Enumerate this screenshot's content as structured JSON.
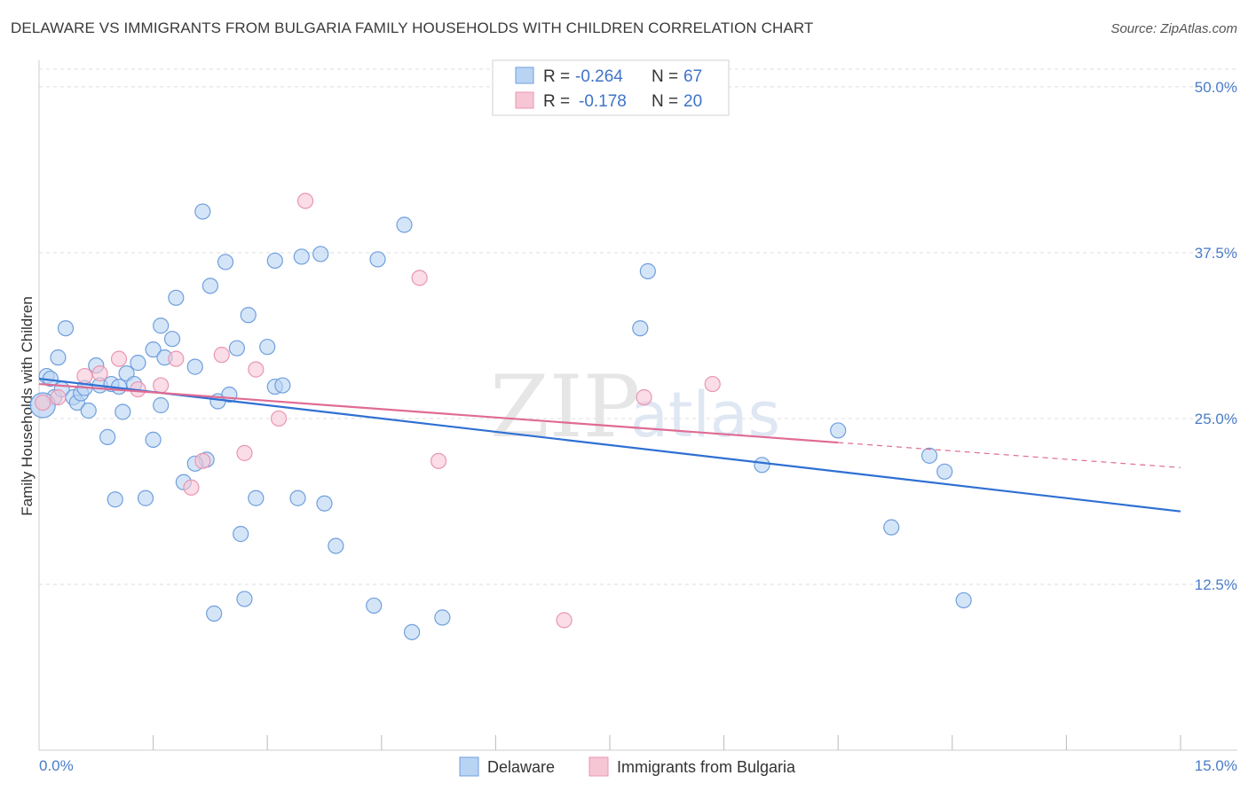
{
  "chart_data": {
    "type": "scatter",
    "title": "DELAWARE VS IMMIGRANTS FROM BULGARIA FAMILY HOUSEHOLDS WITH CHILDREN CORRELATION CHART",
    "source": "Source: ZipAtlas.com",
    "watermark": {
      "zip": "ZIP",
      "atlas": "atlas"
    },
    "xlabel": "",
    "ylabel": "Family Households with Children",
    "xlim": [
      0,
      15
    ],
    "ylim": [
      0,
      52
    ],
    "y_ticks": [
      {
        "value": 12.5,
        "label": "12.5%"
      },
      {
        "value": 25.0,
        "label": "25.0%"
      },
      {
        "value": 37.5,
        "label": "37.5%"
      },
      {
        "value": 50.0,
        "label": "50.0%"
      }
    ],
    "x_tick_labels": {
      "min": "0.0%",
      "max": "15.0%"
    },
    "legend": {
      "r_label": "R =",
      "n_label": "N =",
      "entries": [
        {
          "r": "-0.264",
          "n": "67"
        },
        {
          "r": "-0.178",
          "n": "20"
        }
      ]
    },
    "colors": {
      "delaware_fill": "#b9d3f3",
      "delaware_stroke": "#6f9fdd",
      "delaware_line": "#2e6fd3",
      "bulgaria_fill": "#f7c6d5",
      "bulgaria_stroke": "#e996b2",
      "bulgaria_line": "#e06b93"
    },
    "series": [
      {
        "name": "Delaware",
        "trend": {
          "x0": 0,
          "y0": 28.0,
          "x1": 15,
          "y1": 18.0
        },
        "points": [
          [
            0.1,
            28.2
          ],
          [
            0.15,
            28.0
          ],
          [
            0.2,
            26.6
          ],
          [
            0.25,
            29.6
          ],
          [
            0.3,
            27.2
          ],
          [
            0.35,
            31.8
          ],
          [
            0.45,
            26.6
          ],
          [
            0.5,
            26.2
          ],
          [
            0.55,
            26.9
          ],
          [
            0.65,
            25.6
          ],
          [
            0.75,
            29.0
          ],
          [
            0.8,
            27.5
          ],
          [
            0.9,
            23.6
          ],
          [
            0.95,
            27.6
          ],
          [
            1.0,
            18.9
          ],
          [
            1.1,
            25.5
          ],
          [
            1.15,
            28.4
          ],
          [
            1.25,
            27.6
          ],
          [
            1.3,
            29.2
          ],
          [
            1.4,
            19.0
          ],
          [
            1.5,
            30.2
          ],
          [
            1.5,
            23.4
          ],
          [
            1.6,
            26.0
          ],
          [
            1.6,
            32.0
          ],
          [
            1.65,
            29.6
          ],
          [
            1.75,
            31.0
          ],
          [
            1.8,
            34.1
          ],
          [
            1.9,
            20.2
          ],
          [
            2.05,
            28.9
          ],
          [
            2.15,
            40.6
          ],
          [
            2.2,
            21.9
          ],
          [
            2.25,
            35.0
          ],
          [
            2.3,
            10.3
          ],
          [
            2.35,
            26.3
          ],
          [
            2.45,
            36.8
          ],
          [
            2.5,
            26.8
          ],
          [
            2.6,
            30.3
          ],
          [
            2.65,
            16.3
          ],
          [
            2.7,
            11.4
          ],
          [
            2.75,
            32.8
          ],
          [
            2.85,
            19.0
          ],
          [
            3.0,
            30.4
          ],
          [
            3.1,
            27.4
          ],
          [
            3.1,
            36.9
          ],
          [
            3.2,
            27.5
          ],
          [
            3.4,
            19.0
          ],
          [
            3.45,
            37.2
          ],
          [
            3.7,
            37.4
          ],
          [
            3.75,
            18.6
          ],
          [
            3.9,
            15.4
          ],
          [
            4.4,
            10.9
          ],
          [
            4.45,
            37.0
          ],
          [
            4.8,
            39.6
          ],
          [
            4.9,
            8.9
          ],
          [
            5.3,
            10.0
          ],
          [
            7.9,
            31.8
          ],
          [
            8.0,
            36.1
          ],
          [
            9.5,
            21.5
          ],
          [
            10.5,
            24.1
          ],
          [
            11.2,
            16.8
          ],
          [
            11.7,
            22.2
          ],
          [
            11.9,
            21.0
          ],
          [
            12.15,
            11.3
          ],
          [
            0.05,
            26.0
          ],
          [
            1.05,
            27.4
          ],
          [
            2.05,
            21.6
          ],
          [
            0.6,
            27.3
          ]
        ]
      },
      {
        "name": "Immigrants from Bulgaria",
        "trend": {
          "x0": 0,
          "y0": 27.6,
          "x1": 15,
          "y1": 21.3,
          "solid_until_x": 10.5
        },
        "points": [
          [
            0.05,
            26.2
          ],
          [
            0.25,
            26.6
          ],
          [
            0.6,
            28.2
          ],
          [
            0.8,
            28.4
          ],
          [
            1.05,
            29.5
          ],
          [
            1.3,
            27.2
          ],
          [
            1.6,
            27.5
          ],
          [
            1.8,
            29.5
          ],
          [
            2.0,
            19.8
          ],
          [
            2.15,
            21.8
          ],
          [
            2.4,
            29.8
          ],
          [
            2.7,
            22.4
          ],
          [
            2.85,
            28.7
          ],
          [
            3.15,
            25.0
          ],
          [
            3.5,
            41.4
          ],
          [
            5.0,
            35.6
          ],
          [
            5.25,
            21.8
          ],
          [
            6.9,
            9.8
          ],
          [
            7.95,
            26.6
          ],
          [
            8.85,
            27.6
          ]
        ]
      }
    ]
  }
}
